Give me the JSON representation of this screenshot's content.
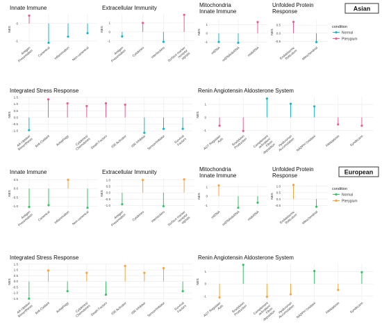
{
  "colors": {
    "asian_normal": "#14b8c8",
    "asian_pterygium": "#ec5b93",
    "european_normal": "#37c267",
    "european_pterygium": "#f9a33b",
    "grid": "#e6e6e6"
  },
  "groups": [
    {
      "label": "Asian",
      "legend_title": "condition",
      "legend_items": [
        "Normal",
        "Pterygium"
      ]
    },
    {
      "label": "European",
      "legend_title": "condition",
      "legend_items": [
        "Normal",
        "Pterygium"
      ]
    }
  ],
  "chart_data": [
    {
      "type": "lollipop",
      "group": "Asian",
      "title": "Innate Immune",
      "ylabel": "NES",
      "yticks": [
        -1,
        0
      ],
      "ylim": [
        -1.2,
        0.55
      ],
      "points": [
        {
          "category": "Antigen Presentation",
          "value": 0.45,
          "condition": "Pterygium"
        },
        {
          "category": "Canonical",
          "value": -1.1,
          "condition": "Normal"
        },
        {
          "category": "Inflammation",
          "value": -0.75,
          "condition": "Normal"
        },
        {
          "category": "Non-canonical",
          "value": -0.55,
          "condition": "Normal"
        }
      ]
    },
    {
      "type": "lollipop",
      "group": "Asian",
      "title": "Extracellular Immunity",
      "ylabel": "NES",
      "yticks": [
        -1,
        0,
        1
      ],
      "ylim": [
        -1.4,
        2.0
      ],
      "points": [
        {
          "category": "Antigen Presentation",
          "value": -0.5,
          "condition": "Normal"
        },
        {
          "category": "Cytokines",
          "value": 1.0,
          "condition": "Pterygium"
        },
        {
          "category": "Interleukins",
          "value": -1.1,
          "condition": "Normal"
        },
        {
          "category": "Surface marker receptor signals",
          "value": 1.9,
          "condition": "Pterygium"
        }
      ]
    },
    {
      "type": "lollipop",
      "group": "Asian",
      "title": "Mitochondria\nInnate Immune",
      "ylabel": "NES",
      "yticks": [
        -1,
        0,
        1
      ],
      "ylim": [
        -1.3,
        1.6
      ],
      "points": [
        {
          "category": "mtDNA",
          "value": -1.0,
          "condition": "Normal"
        },
        {
          "category": "mtDNA/dsRNA",
          "value": -1.1,
          "condition": "Normal"
        },
        {
          "category": "mtdsRNA",
          "value": 1.3,
          "condition": "Pterygium"
        }
      ]
    },
    {
      "type": "lollipop",
      "group": "Asian",
      "title": "Unfolded Protein\nResponse",
      "ylabel": "NES",
      "yticks": [
        -0.5,
        0.0,
        0.5
      ],
      "ylim": [
        -0.7,
        0.85
      ],
      "points": [
        {
          "category": "Endoplasmic Reticulum",
          "value": 0.7,
          "condition": "Pterygium"
        },
        {
          "category": "Mitochondrial",
          "value": -0.55,
          "condition": "Normal"
        }
      ]
    },
    {
      "type": "lollipop",
      "group": "Asian",
      "title": "Integrated Stress Response",
      "ylabel": "NES",
      "yticks": [
        -1.0,
        -0.5,
        0.0,
        0.5,
        1.0,
        1.5
      ],
      "ylim": [
        -1.15,
        1.55
      ],
      "points": [
        {
          "category": "AA-Uptake/ Biosynthesis",
          "value": -0.95,
          "condition": "Normal"
        },
        {
          "category": "Anti-Oxidant",
          "value": 1.35,
          "condition": "Pterygium"
        },
        {
          "category": "Autophagy",
          "value": 1.05,
          "condition": "Pterygium"
        },
        {
          "category": "Cytokines/ Chemokines",
          "value": 0.85,
          "condition": "Pterygium"
        },
        {
          "category": "Death Factors",
          "value": 1.05,
          "condition": "Pterygium"
        },
        {
          "category": "ISR Activator",
          "value": 0.95,
          "condition": "Pterygium"
        },
        {
          "category": "ISR Inhibitor",
          "value": -1.15,
          "condition": "Normal"
        },
        {
          "category": "Sensor/Initiator",
          "value": -0.85,
          "condition": "Normal"
        },
        {
          "category": "Survival Factors",
          "value": -0.85,
          "condition": "Normal"
        }
      ]
    },
    {
      "type": "lollipop",
      "group": "Asian",
      "title": "Renin Angiotensin Aldosterone System",
      "ylabel": "NES",
      "yticks": [
        -1,
        0,
        1
      ],
      "ylim": [
        -1.2,
        1.6
      ],
      "points": [
        {
          "category": "AGT Regulator Axis",
          "value": -0.65,
          "condition": "Pterygium"
        },
        {
          "category": "Bradykinin Production",
          "value": -1.05,
          "condition": "Pterygium"
        },
        {
          "category": "Complement activation/ Fibrin deposition",
          "value": 1.45,
          "condition": "Normal"
        },
        {
          "category": "Hyaluronan Accumulation",
          "value": 1.05,
          "condition": "Normal"
        },
        {
          "category": "NADPH Oxidase",
          "value": 0.85,
          "condition": "Normal"
        },
        {
          "category": "PANoptosis",
          "value": -0.55,
          "condition": "Pterygium"
        },
        {
          "category": "Syndecans",
          "value": -0.65,
          "condition": "Pterygium"
        }
      ]
    },
    {
      "type": "lollipop",
      "group": "European",
      "title": "Innate Immune",
      "ylabel": "NES",
      "yticks": [
        -1.0,
        -0.5,
        0.0,
        0.5
      ],
      "ylim": [
        -1.15,
        0.6
      ],
      "points": [
        {
          "category": "Antigen Presentation",
          "value": -1.05,
          "condition": "Normal"
        },
        {
          "category": "Canonical",
          "value": -0.95,
          "condition": "Normal"
        },
        {
          "category": "Inflammation",
          "value": 0.5,
          "condition": "Pterygium"
        },
        {
          "category": "Non-canonical",
          "value": -1.1,
          "condition": "Normal"
        }
      ]
    },
    {
      "type": "lollipop",
      "group": "European",
      "title": "Extracellular Immunity",
      "ylabel": "NES",
      "yticks": [
        -1.0,
        -0.5,
        0.0,
        0.5,
        1.0
      ],
      "ylim": [
        -1.25,
        1.15
      ],
      "points": [
        {
          "category": "Antigen Presentation",
          "value": -0.9,
          "condition": "Normal"
        },
        {
          "category": "Cytokines",
          "value": 1.0,
          "condition": "Pterygium"
        },
        {
          "category": "Interleukins",
          "value": -1.05,
          "condition": "Normal"
        },
        {
          "category": "Surface marker receptor signals",
          "value": 1.05,
          "condition": "Pterygium"
        }
      ]
    },
    {
      "type": "lollipop",
      "group": "European",
      "title": "Mitochondria\nInnate Immune",
      "ylabel": "NES",
      "yticks": [
        -1,
        0,
        1
      ],
      "ylim": [
        -1.35,
        1.35
      ],
      "points": [
        {
          "category": "mtDNA",
          "value": 1.15,
          "condition": "Pterygium"
        },
        {
          "category": "mtDNA/dsRNA",
          "value": -1.25,
          "condition": "Normal"
        },
        {
          "category": "mtdsRNA",
          "value": -0.7,
          "condition": "Normal"
        }
      ]
    },
    {
      "type": "lollipop",
      "group": "European",
      "title": "Unfolded Protein\nResponse",
      "ylabel": "NES",
      "yticks": [
        -0.5,
        0.0,
        0.5,
        1.0
      ],
      "ylim": [
        -0.75,
        1.2
      ],
      "points": [
        {
          "category": "Endoplasmic Reticulum",
          "value": 1.1,
          "condition": "Pterygium"
        },
        {
          "category": "Mitochondrial",
          "value": -0.6,
          "condition": "Normal"
        }
      ]
    },
    {
      "type": "lollipop",
      "group": "European",
      "title": "Integrated Stress Response",
      "ylabel": "NES",
      "yticks": [
        -1.5,
        -1.0,
        -0.5,
        0.0,
        0.5,
        1.0,
        1.5
      ],
      "ylim": [
        -1.6,
        1.55
      ],
      "points": [
        {
          "category": "AA-Uptake/ Biosynthesis",
          "value": -1.5,
          "condition": "Normal"
        },
        {
          "category": "Anti-Oxidant",
          "value": 0.95,
          "condition": "Pterygium"
        },
        {
          "category": "Autophagy",
          "value": -0.85,
          "condition": "Normal"
        },
        {
          "category": "Cytokines/ Chemokines",
          "value": 0.75,
          "condition": "Pterygium"
        },
        {
          "category": "Death Factors",
          "value": -1.15,
          "condition": "Normal"
        },
        {
          "category": "ISR Activator",
          "value": 1.35,
          "condition": "Pterygium"
        },
        {
          "category": "ISR Inhibitor",
          "value": 0.75,
          "condition": "Pterygium"
        },
        {
          "category": "Sensor/Initiator",
          "value": 1.15,
          "condition": "Pterygium"
        },
        {
          "category": "Survival Factors",
          "value": -0.85,
          "condition": "Normal"
        }
      ]
    },
    {
      "type": "lollipop",
      "group": "European",
      "title": "Renin Angiotensin Aldosterone System",
      "ylabel": "NES",
      "yticks": [
        -1,
        0,
        1
      ],
      "ylim": [
        -1.3,
        1.65
      ],
      "points": [
        {
          "category": "AGT Regulator Axis",
          "value": -1.1,
          "condition": "Pterygium"
        },
        {
          "category": "Bradykinin Production",
          "value": 1.55,
          "condition": "Normal"
        },
        {
          "category": "Complement activation/ Fibrin deposition",
          "value": -1.05,
          "condition": "Pterygium"
        },
        {
          "category": "Hyaluronan Accumulation",
          "value": -0.85,
          "condition": "Pterygium"
        },
        {
          "category": "NADPH Oxidase",
          "value": 1.05,
          "condition": "Normal"
        },
        {
          "category": "PANoptosis",
          "value": -0.5,
          "condition": "Pterygium"
        },
        {
          "category": "Syndecans",
          "value": 0.95,
          "condition": "Normal"
        }
      ]
    }
  ]
}
